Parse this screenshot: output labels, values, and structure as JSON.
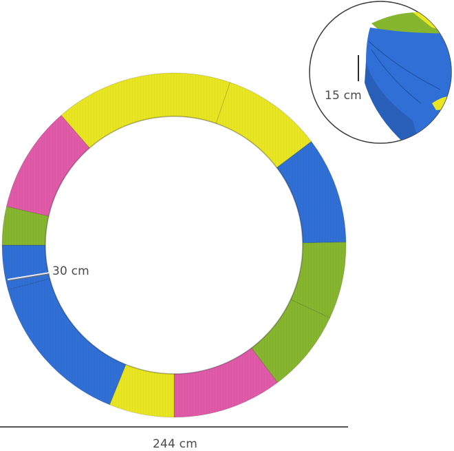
{
  "product": {
    "name": "trampoline-safety-pad",
    "segment_colors": [
      "#e8e620",
      "#2f6fd6",
      "#86b62e",
      "#e05aa8",
      "#e8e620",
      "#2f6fd6",
      "#2f6fd6",
      "#86b62e",
      "#d568a8"
    ],
    "colors": {
      "yellow": "#e8e620",
      "blue": "#2f6fd6",
      "green": "#86b62e",
      "pink": "#e05aa8"
    }
  },
  "dimensions": {
    "width_label": "30 cm",
    "height_label": "15 cm",
    "diameter_label": "244 cm"
  }
}
